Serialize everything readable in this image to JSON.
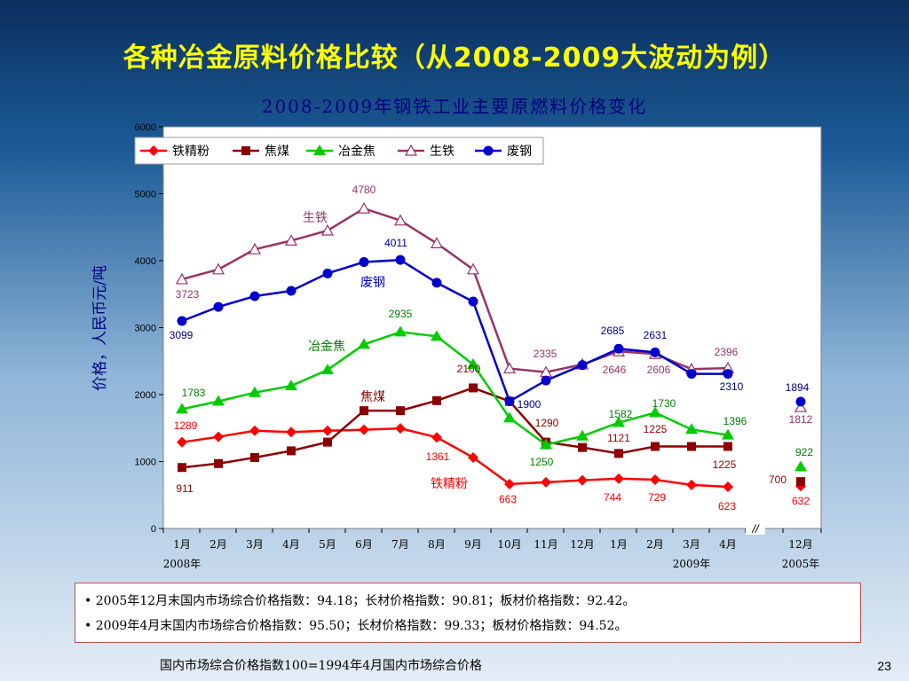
{
  "slide": {
    "title": "各种冶金原料价格比较（从2008-2009大波动为例）",
    "notes": [
      "• 2005年12月末国内市场综合价格指数：94.18；长材价格指数：90.81；板材价格指数：92.42。",
      "• 2009年4月末国内市场综合价格指数：95.50；长材价格指数：99.33；板材价格指数：94.52。"
    ],
    "footnote": "国内市场综合价格指数100=1994年4月国内市场综合价格",
    "page_number": "23"
  },
  "chart_data": {
    "type": "line",
    "title": "2008-2009年钢铁工业主要原燃料价格变化",
    "ylabel": "价格，人民币元/吨",
    "xlabel": "",
    "ylim": [
      0,
      6000
    ],
    "yticks": [
      0,
      1000,
      2000,
      3000,
      4000,
      5000,
      6000
    ],
    "legend_position": "top-left",
    "categories": [
      "1月",
      "2月",
      "3月",
      "4月",
      "5月",
      "6月",
      "7月",
      "8月",
      "9月",
      "10月",
      "11月",
      "12月",
      "1月",
      "2月",
      "3月",
      "4月",
      "12月"
    ],
    "year_labels": [
      {
        "text": "2008年",
        "category": 0
      },
      {
        "text": "2009年",
        "category": 14
      },
      {
        "text": "2005年",
        "category": 16
      }
    ],
    "axis_break_symbol": "//",
    "series": [
      {
        "name": "铁精粉",
        "color": "#ff0000",
        "marker": "diamond",
        "values": [
          1289,
          1370,
          1460,
          1440,
          1460,
          1475,
          1495,
          1361,
          1060,
          663,
          690,
          720,
          744,
          729,
          650,
          623,
          null
        ],
        "extra_value": 632,
        "inline_label": "铁精粉"
      },
      {
        "name": "焦煤",
        "color": "#8b0000",
        "marker": "square",
        "values": [
          911,
          970,
          1060,
          1160,
          1290,
          1760,
          1760,
          1910,
          2100,
          1900,
          1290,
          1210,
          1121,
          1225,
          1225,
          1225,
          null
        ],
        "extra_value": 700,
        "inline_label": "焦煤"
      },
      {
        "name": "冶金焦",
        "color": "#00cc00",
        "marker": "triangle",
        "values": [
          1783,
          1900,
          2030,
          2130,
          2370,
          2750,
          2935,
          2870,
          2450,
          1650,
          1250,
          1380,
          1582,
          1730,
          1480,
          1396,
          null
        ],
        "extra_value": 922,
        "inline_label": "冶金焦"
      },
      {
        "name": "生铁",
        "color": "#993366",
        "marker": "triangle-open",
        "values": [
          3723,
          3870,
          4170,
          4300,
          4450,
          4780,
          4600,
          4260,
          3870,
          2390,
          2335,
          2450,
          2646,
          2606,
          2380,
          2396,
          null
        ],
        "extra_value": 1812,
        "inline_label": "生铁"
      },
      {
        "name": "废钢",
        "color": "#0000cc",
        "marker": "circle",
        "values": [
          3099,
          3310,
          3470,
          3550,
          3810,
          3980,
          4011,
          3670,
          3390,
          1900,
          2210,
          2440,
          2685,
          2631,
          2310,
          2310,
          null
        ],
        "extra_value": 1894,
        "inline_label": "废钢"
      }
    ],
    "data_labels": [
      {
        "series": "铁精粉",
        "index": 0,
        "text": "1289"
      },
      {
        "series": "铁精粉",
        "index": 7,
        "text": "1361"
      },
      {
        "series": "铁精粉",
        "index": 9,
        "text": "663"
      },
      {
        "series": "铁精粉",
        "index": 12,
        "text": "744"
      },
      {
        "series": "铁精粉",
        "index": 13,
        "text": "729"
      },
      {
        "series": "铁精粉",
        "index": 15,
        "text": "623"
      },
      {
        "series": "铁精粉",
        "index": 16,
        "text": "632"
      },
      {
        "series": "焦煤",
        "index": 0,
        "text": "911"
      },
      {
        "series": "焦煤",
        "index": 8,
        "text": "2100"
      },
      {
        "series": "焦煤",
        "index": 10,
        "text": "1290"
      },
      {
        "series": "焦煤",
        "index": 12,
        "text": "1121"
      },
      {
        "series": "焦煤",
        "index": 13,
        "text": "1225"
      },
      {
        "series": "焦煤",
        "index": 15,
        "text": "1225"
      },
      {
        "series": "焦煤",
        "index": 16,
        "text": "700"
      },
      {
        "series": "冶金焦",
        "index": 0,
        "text": "1783"
      },
      {
        "series": "冶金焦",
        "index": 6,
        "text": "2935"
      },
      {
        "series": "冶金焦",
        "index": 10,
        "text": "1250"
      },
      {
        "series": "冶金焦",
        "index": 12,
        "text": "1582"
      },
      {
        "series": "冶金焦",
        "index": 13,
        "text": "1730"
      },
      {
        "series": "冶金焦",
        "index": 15,
        "text": "1396"
      },
      {
        "series": "冶金焦",
        "index": 16,
        "text": "922"
      },
      {
        "series": "生铁",
        "index": 0,
        "text": "3723"
      },
      {
        "series": "生铁",
        "index": 5,
        "text": "4780"
      },
      {
        "series": "生铁",
        "index": 10,
        "text": "2335"
      },
      {
        "series": "生铁",
        "index": 12,
        "text": "2646"
      },
      {
        "series": "生铁",
        "index": 13,
        "text": "2606"
      },
      {
        "series": "生铁",
        "index": 15,
        "text": "2396"
      },
      {
        "series": "生铁",
        "index": 16,
        "text": "1812"
      },
      {
        "series": "废钢",
        "index": 0,
        "text": "3099"
      },
      {
        "series": "废钢",
        "index": 6,
        "text": "4011"
      },
      {
        "series": "废钢",
        "index": 9,
        "text": "1900"
      },
      {
        "series": "废钢",
        "index": 12,
        "text": "2685"
      },
      {
        "series": "废钢",
        "index": 13,
        "text": "2631"
      },
      {
        "series": "废钢",
        "index": 15,
        "text": "2310"
      },
      {
        "series": "废钢",
        "index": 16,
        "text": "1894"
      }
    ]
  }
}
